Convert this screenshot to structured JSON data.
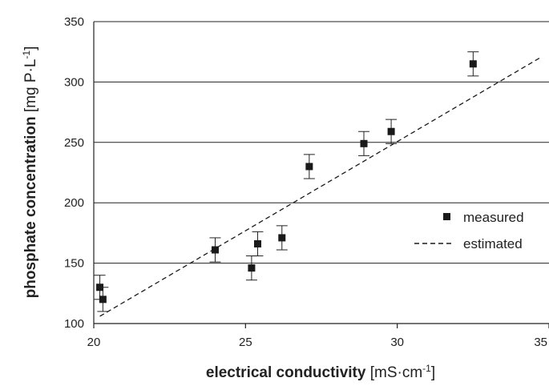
{
  "chart_data": {
    "type": "scatter",
    "xlabel": {
      "bold": "electrical conductivity",
      "unit_pre": " [mS·cm",
      "unit_sup": "-1",
      "unit_post": "]"
    },
    "ylabel": {
      "bold": "phosphate concentration",
      "unit_pre": " [mg P·L",
      "unit_sup": "-1",
      "unit_post": "]"
    },
    "xlim": [
      20,
      35
    ],
    "ylim": [
      100,
      350
    ],
    "x_ticks": [
      20,
      25,
      30,
      35
    ],
    "y_ticks": [
      100,
      150,
      200,
      250,
      300,
      350
    ],
    "grid": "horizontal",
    "legend_position": "right",
    "series": [
      {
        "name": "measured",
        "marker": "square",
        "color": "#1a1a1a",
        "points": [
          {
            "x": 20.2,
            "y": 130,
            "err": 10
          },
          {
            "x": 20.3,
            "y": 120,
            "err": 10
          },
          {
            "x": 24.0,
            "y": 161,
            "err": 10
          },
          {
            "x": 25.2,
            "y": 146,
            "err": 10
          },
          {
            "x": 25.4,
            "y": 166,
            "err": 10
          },
          {
            "x": 26.2,
            "y": 171,
            "err": 10
          },
          {
            "x": 27.1,
            "y": 230,
            "err": 10
          },
          {
            "x": 28.9,
            "y": 249,
            "err": 10
          },
          {
            "x": 29.8,
            "y": 259,
            "err": 10
          },
          {
            "x": 32.5,
            "y": 315,
            "err": 10
          }
        ]
      },
      {
        "name": "estimated",
        "style": "dashed",
        "color": "#1a1a1a",
        "points": [
          {
            "x": 20.2,
            "y": 106
          },
          {
            "x": 34.7,
            "y": 320
          }
        ]
      }
    ]
  }
}
